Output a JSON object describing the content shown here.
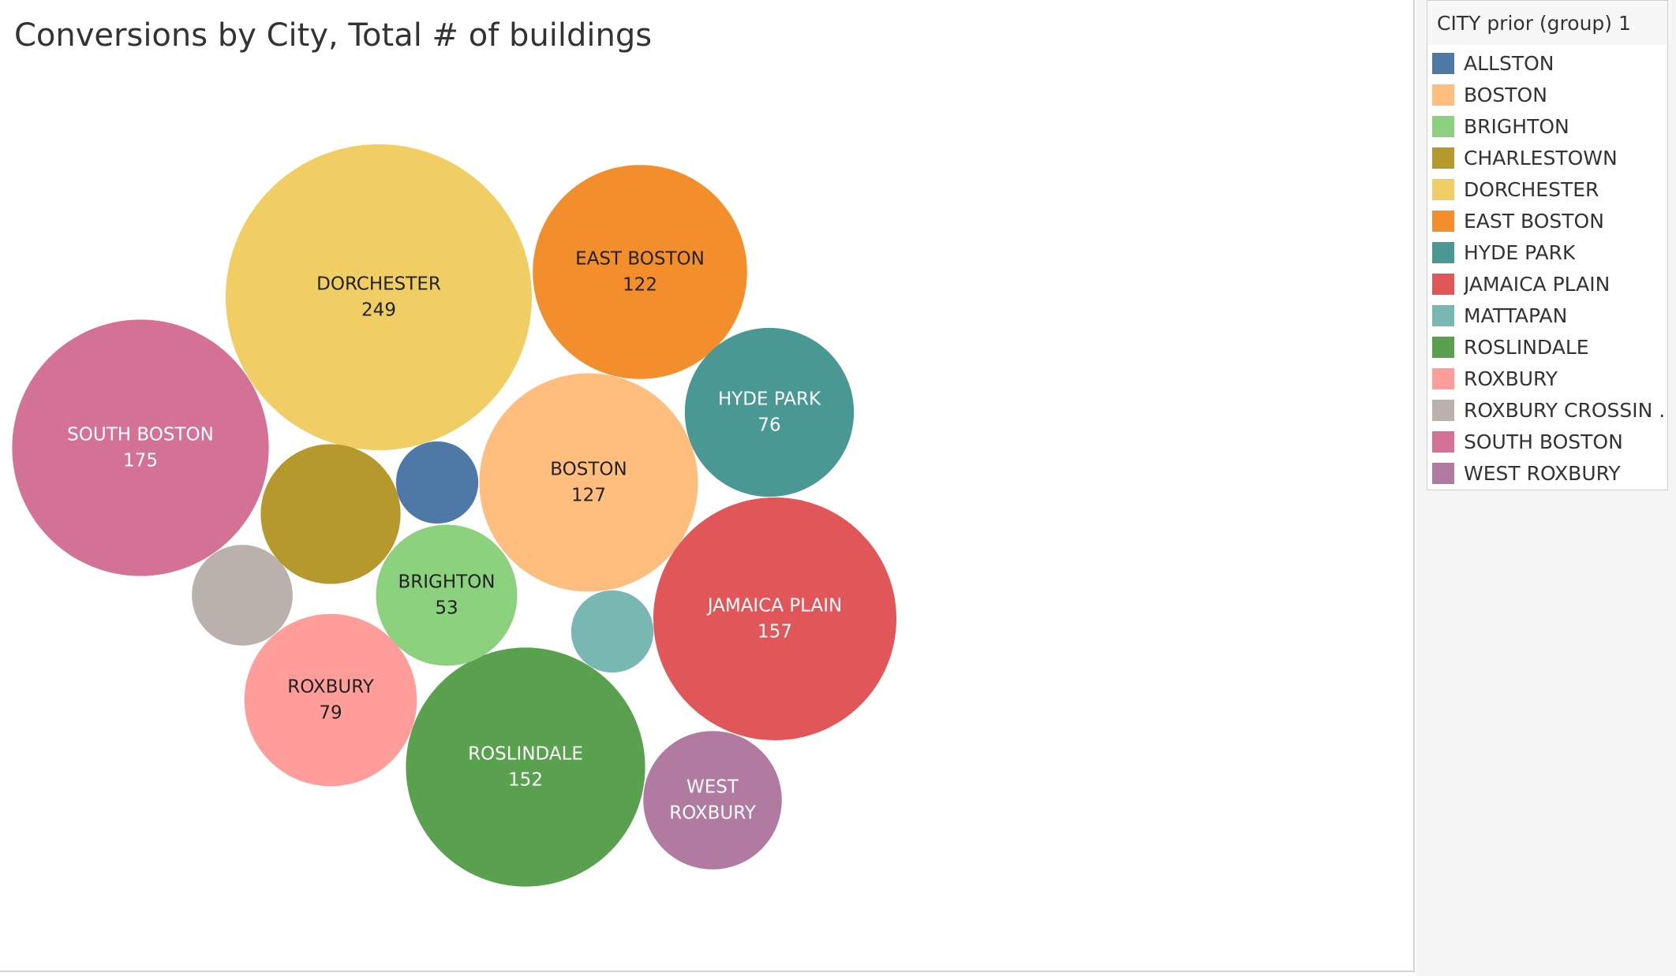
{
  "chart_data": {
    "type": "bubble",
    "title": "Conversions by City, Total # of buildings",
    "legend_title": "CITY prior (group) 1",
    "legend_placement": "right",
    "categories": [
      "ALLSTON",
      "BOSTON",
      "BRIGHTON",
      "CHARLESTOWN",
      "DORCHESTER",
      "EAST BOSTON",
      "HYDE PARK",
      "JAMAICA PLAIN",
      "MATTAPAN",
      "ROSLINDALE",
      "ROXBURY",
      "ROXBURY CROSSIN ..",
      "SOUTH BOSTON",
      "WEST ROXBURY"
    ],
    "colors": [
      "#4e79a7",
      "#ffbe7d",
      "#8cd17d",
      "#b6992d",
      "#f1ce63",
      "#f28e2b",
      "#499894",
      "#e15759",
      "#79b7b2",
      "#59a14f",
      "#ff9d9a",
      "#bab0ac",
      "#d37295",
      "#b07aa1"
    ],
    "bubbles": [
      {
        "name": "DORCHESTER",
        "label_lines": [
          "DORCHESTER"
        ],
        "value": 249,
        "value_label": "249",
        "color": "#f1ce63",
        "text_color": "#222222"
      },
      {
        "name": "SOUTH BOSTON",
        "label_lines": [
          "SOUTH BOSTON"
        ],
        "value": 175,
        "value_label": "175",
        "color": "#d37295",
        "text_color": "#ffffff"
      },
      {
        "name": "JAMAICA PLAIN",
        "label_lines": [
          "JAMAICA PLAIN"
        ],
        "value": 157,
        "value_label": "157",
        "color": "#e15759",
        "text_color": "#ffffff"
      },
      {
        "name": "ROSLINDALE",
        "label_lines": [
          "ROSLINDALE"
        ],
        "value": 152,
        "value_label": "152",
        "color": "#59a14f",
        "text_color": "#ffffff"
      },
      {
        "name": "BOSTON",
        "label_lines": [
          "BOSTON"
        ],
        "value": 127,
        "value_label": "127",
        "color": "#ffbe7d",
        "text_color": "#222222"
      },
      {
        "name": "EAST BOSTON",
        "label_lines": [
          "EAST BOSTON"
        ],
        "value": 122,
        "value_label": "122",
        "color": "#f28e2b",
        "text_color": "#222222"
      },
      {
        "name": "ROXBURY",
        "label_lines": [
          "ROXBURY"
        ],
        "value": 79,
        "value_label": "79",
        "color": "#ff9d9a",
        "text_color": "#222222"
      },
      {
        "name": "HYDE PARK",
        "label_lines": [
          "HYDE PARK"
        ],
        "value": 76,
        "value_label": "76",
        "color": "#499894",
        "text_color": "#ffffff"
      },
      {
        "name": "BRIGHTON",
        "label_lines": [
          "BRIGHTON"
        ],
        "value": 53,
        "value_label": "53",
        "color": "#8cd17d",
        "text_color": "#222222"
      },
      {
        "name": "WEST ROXBURY",
        "label_lines": [
          "WEST",
          "ROXBURY"
        ],
        "value": 51,
        "value_label": "",
        "color": "#b07aa1",
        "text_color": "#ffffff"
      },
      {
        "name": "CHARLESTOWN",
        "label_lines": [],
        "value": 52,
        "value_label": "",
        "color": "#b6992d",
        "text_color": "#222222"
      },
      {
        "name": "ROXBURY CROSSIN ..",
        "label_lines": [],
        "value": 27,
        "value_label": "",
        "color": "#bab0ac",
        "text_color": "#222222"
      },
      {
        "name": "ALLSTON",
        "label_lines": [],
        "value": 18,
        "value_label": "",
        "color": "#4e79a7",
        "text_color": "#ffffff"
      },
      {
        "name": "MATTAPAN",
        "label_lines": [],
        "value": 18,
        "value_label": "",
        "color": "#79b7b2",
        "text_color": "#222222"
      }
    ]
  }
}
